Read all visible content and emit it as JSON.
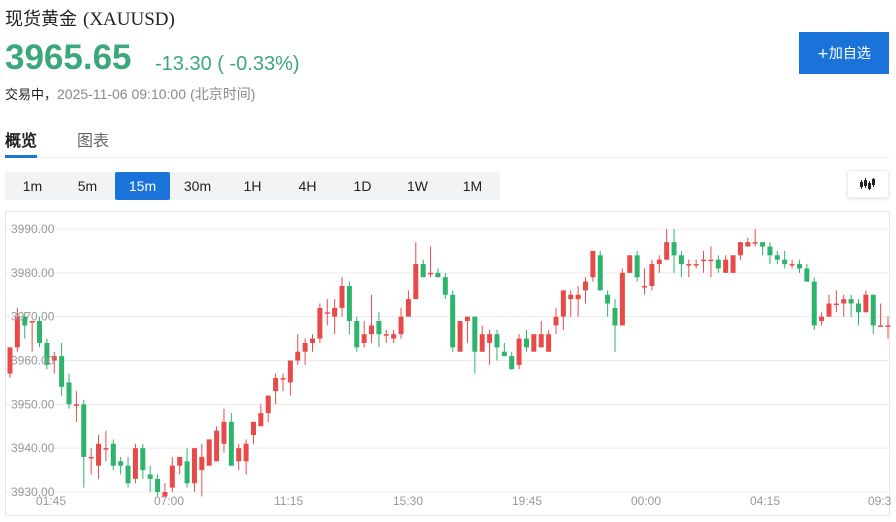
{
  "header": {
    "name": "现货黄金",
    "symbol": "(XAUUSD)",
    "price": "3965.65",
    "change": "-13.30 ( -0.33%)",
    "status_label": "交易中，",
    "datetime": "2025-11-06 09:10:00",
    "timezone": "(北京时间)",
    "add_watchlist_label": "+加自选"
  },
  "tabs": [
    {
      "label": "概览",
      "active": true
    },
    {
      "label": "图表",
      "active": false
    }
  ],
  "periods": [
    {
      "label": "1m",
      "active": false
    },
    {
      "label": "5m",
      "active": false
    },
    {
      "label": "15m",
      "active": true
    },
    {
      "label": "30m",
      "active": false
    },
    {
      "label": "1H",
      "active": false
    },
    {
      "label": "4H",
      "active": false
    },
    {
      "label": "1D",
      "active": false
    },
    {
      "label": "1W",
      "active": false
    },
    {
      "label": "1M",
      "active": false
    }
  ],
  "chart_type_icon": "candlestick-icon",
  "colors": {
    "up": "#e84a4a",
    "down": "#2db36b",
    "accent": "#1a73d9",
    "price_down_text": "#3aa87c"
  },
  "chart_data": {
    "type": "candlestick",
    "title": "现货黄金 (XAUUSD) 15m",
    "y_ticks": [
      "3990.00",
      "3980.00",
      "3970.00",
      "3960.00",
      "3950.00",
      "3940.00",
      "3930.00"
    ],
    "x_ticks": [
      "01:45",
      "07:00",
      "11:15",
      "15:30",
      "19:45",
      "00:00",
      "04:15",
      "09:3"
    ],
    "ylim": [
      3929,
      3992
    ],
    "grid": true,
    "candles": [
      [
        3957,
        3963,
        3956,
        3963
      ],
      [
        3963,
        3972,
        3962,
        3970
      ],
      [
        3970,
        3971,
        3965,
        3968
      ],
      [
        3969,
        3969,
        3962,
        3969
      ],
      [
        3969,
        3970,
        3963,
        3964
      ],
      [
        3964,
        3965,
        3958,
        3959
      ],
      [
        3960,
        3962,
        3957,
        3961
      ],
      [
        3961,
        3964,
        3952,
        3954
      ],
      [
        3955,
        3957,
        3949,
        3950
      ],
      [
        3950,
        3953,
        3946,
        3950
      ],
      [
        3950,
        3951,
        3931,
        3938
      ],
      [
        3938,
        3940,
        3934,
        3938
      ],
      [
        3936,
        3943,
        3933,
        3941
      ],
      [
        3940,
        3944,
        3937,
        3940
      ],
      [
        3941,
        3942,
        3935,
        3936
      ],
      [
        3937,
        3938,
        3934,
        3936
      ],
      [
        3936,
        3938,
        3931,
        3932
      ],
      [
        3933,
        3941,
        3932,
        3940
      ],
      [
        3940,
        3941,
        3933,
        3935
      ],
      [
        3934,
        3936,
        3930,
        3933
      ],
      [
        3933,
        3934,
        3929,
        3930
      ],
      [
        3929,
        3932,
        3929,
        3930
      ],
      [
        3931,
        3938,
        3930,
        3936
      ],
      [
        3936,
        3938,
        3934,
        3938
      ],
      [
        3937,
        3940,
        3931,
        3932
      ],
      [
        3932,
        3939,
        3930,
        3940
      ],
      [
        3935,
        3941,
        3929,
        3938
      ],
      [
        3936,
        3942,
        3936,
        3942
      ],
      [
        3937,
        3945,
        3937,
        3944
      ],
      [
        3941,
        3949,
        3939,
        3946
      ],
      [
        3946,
        3948,
        3936,
        3936
      ],
      [
        3937,
        3941,
        3935,
        3940
      ],
      [
        3937,
        3942,
        3934,
        3941
      ],
      [
        3943,
        3946,
        3941,
        3946
      ],
      [
        3945,
        3950,
        3945,
        3948
      ],
      [
        3948,
        3952,
        3946,
        3952
      ],
      [
        3953,
        3957,
        3950,
        3956
      ],
      [
        3956,
        3957,
        3953,
        3956
      ],
      [
        3955,
        3959,
        3952,
        3960
      ],
      [
        3960,
        3966,
        3959,
        3962
      ],
      [
        3962,
        3965,
        3959,
        3964
      ],
      [
        3964,
        3966,
        3962,
        3965
      ],
      [
        3965,
        3973,
        3964,
        3972
      ],
      [
        3971,
        3974,
        3968,
        3971
      ],
      [
        3970,
        3974,
        3966,
        3972
      ],
      [
        3972,
        3979,
        3970,
        3977
      ],
      [
        3977,
        3978,
        3966,
        3969
      ],
      [
        3969,
        3970,
        3962,
        3963
      ],
      [
        3964,
        3969,
        3963,
        3966
      ],
      [
        3966,
        3975,
        3964,
        3968
      ],
      [
        3969,
        3971,
        3963,
        3966
      ],
      [
        3966,
        3967,
        3964,
        3966
      ],
      [
        3965,
        3967,
        3964,
        3966
      ],
      [
        3966,
        3972,
        3965,
        3970
      ],
      [
        3970,
        3976,
        3970,
        3974
      ],
      [
        3974,
        3987,
        3974,
        3982
      ],
      [
        3982,
        3983,
        3979,
        3979
      ],
      [
        3980,
        3986,
        3979,
        3980
      ],
      [
        3980,
        3981,
        3979,
        3979
      ],
      [
        3979,
        3980,
        3974,
        3975
      ],
      [
        3975,
        3976,
        3962,
        3963
      ],
      [
        3962,
        3969,
        3962,
        3969
      ],
      [
        3969,
        3970,
        3964,
        3970
      ],
      [
        3970,
        3970,
        3957,
        3962
      ],
      [
        3962,
        3968,
        3962,
        3966
      ],
      [
        3964,
        3967,
        3959,
        3966
      ],
      [
        3966,
        3967,
        3960,
        3963
      ],
      [
        3962,
        3964,
        3961,
        3961
      ],
      [
        3961,
        3962,
        3958,
        3958
      ],
      [
        3959,
        3966,
        3958,
        3965
      ],
      [
        3965,
        3967,
        3962,
        3963
      ],
      [
        3962,
        3966,
        3963,
        3966
      ],
      [
        3963,
        3969,
        3963,
        3966
      ],
      [
        3962,
        3967,
        3962,
        3966
      ],
      [
        3968,
        3972,
        3966,
        3970
      ],
      [
        3970,
        3976,
        3967,
        3976
      ],
      [
        3974,
        3976,
        3970,
        3975
      ],
      [
        3974,
        3977,
        3970,
        3975
      ],
      [
        3976,
        3979,
        3973,
        3978
      ],
      [
        3979,
        3985,
        3978,
        3985
      ],
      [
        3984,
        3985,
        3976,
        3976
      ],
      [
        3975,
        3976,
        3970,
        3973
      ],
      [
        3972,
        3974,
        3962,
        3968
      ],
      [
        3968,
        3981,
        3968,
        3980
      ],
      [
        3980,
        3984,
        3980,
        3984
      ],
      [
        3984,
        3985,
        3978,
        3979
      ],
      [
        3977,
        3981,
        3975,
        3977
      ],
      [
        3977,
        3983,
        3976,
        3982
      ],
      [
        3982,
        3984,
        3980,
        3983
      ],
      [
        3983,
        3990,
        3983,
        3987
      ],
      [
        3987,
        3990,
        3980,
        3984
      ],
      [
        3984,
        3985,
        3979,
        3982
      ],
      [
        3982,
        3983,
        3979,
        3982
      ],
      [
        3982,
        3983,
        3981,
        3982
      ],
      [
        3983,
        3985,
        3980,
        3983
      ],
      [
        3983,
        3986,
        3979,
        3983
      ],
      [
        3983,
        3984,
        3980,
        3981
      ],
      [
        3980,
        3984,
        3980,
        3983
      ],
      [
        3980,
        3984,
        3980,
        3984
      ],
      [
        3984,
        3987,
        3983,
        3987
      ],
      [
        3986,
        3988,
        3986,
        3987
      ],
      [
        3987,
        3990,
        3986,
        3987
      ],
      [
        3987,
        3987,
        3984,
        3986
      ],
      [
        3986,
        3987,
        3982,
        3984
      ],
      [
        3984,
        3985,
        3982,
        3983
      ],
      [
        3983,
        3985,
        3981,
        3982
      ],
      [
        3982,
        3983,
        3981,
        3982
      ],
      [
        3982,
        3983,
        3980,
        3981
      ],
      [
        3981,
        3982,
        3978,
        3978
      ],
      [
        3978,
        3979,
        3967,
        3968
      ],
      [
        3969,
        3971,
        3968,
        3970
      ],
      [
        3970,
        3975,
        3970,
        3973
      ],
      [
        3973,
        3976,
        3971,
        3973
      ],
      [
        3973,
        3975,
        3970,
        3974
      ],
      [
        3974,
        3975,
        3970,
        3973
      ],
      [
        3973,
        3974,
        3968,
        3971
      ],
      [
        3971,
        3976,
        3971,
        3975
      ],
      [
        3975,
        3975,
        3966,
        3968
      ],
      [
        3968,
        3973,
        3968,
        3968
      ],
      [
        3968,
        3970,
        3965,
        3968
      ]
    ]
  }
}
